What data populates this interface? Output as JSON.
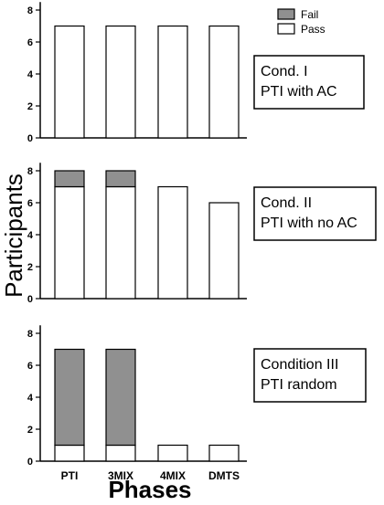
{
  "chart_data": {
    "type": "bar",
    "stacked": true,
    "xlabel": "Phases",
    "ylabel": "Participants",
    "categories": [
      "PTI",
      "3MIX",
      "4MIX",
      "DMTS"
    ],
    "legend": {
      "placement": "top-right",
      "items": [
        {
          "name": "Fail",
          "color": "#909090"
        },
        {
          "name": "Pass",
          "color": "#ffffff"
        }
      ]
    },
    "yticks": [
      "0",
      "2",
      "4",
      "6",
      "8"
    ],
    "ylim": [
      0,
      8.5
    ],
    "panels": [
      {
        "label_lines": [
          "Cond. I",
          "PTI with AC"
        ],
        "series": [
          {
            "name": "Pass",
            "values": [
              7,
              7,
              7,
              7
            ]
          },
          {
            "name": "Fail",
            "values": [
              0,
              0,
              0,
              0
            ]
          }
        ]
      },
      {
        "label_lines": [
          "Cond. II",
          "PTI with no AC"
        ],
        "series": [
          {
            "name": "Pass",
            "values": [
              7,
              7,
              7,
              6
            ]
          },
          {
            "name": "Fail",
            "values": [
              1,
              1,
              0,
              0
            ]
          }
        ]
      },
      {
        "label_lines": [
          "Condition III",
          "PTI   random"
        ],
        "series": [
          {
            "name": "Pass",
            "values": [
              1,
              1,
              1,
              1
            ]
          },
          {
            "name": "Fail",
            "values": [
              6,
              6,
              0,
              0
            ]
          }
        ]
      }
    ]
  }
}
